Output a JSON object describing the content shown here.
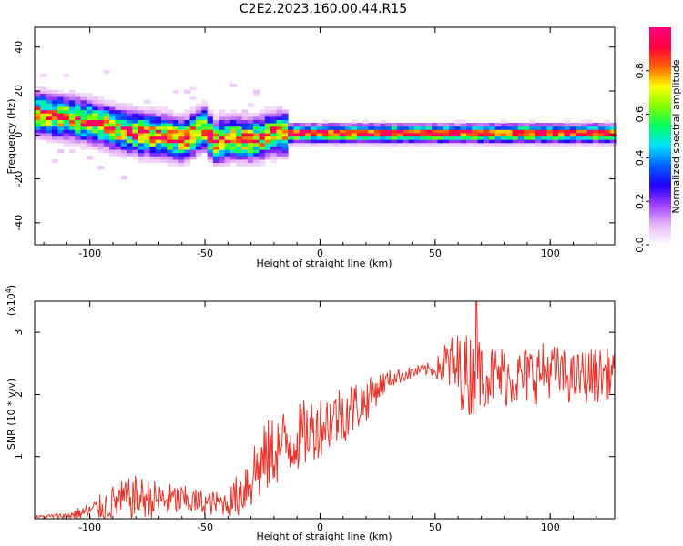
{
  "figure": {
    "title": "C2E2.2023.160.00.44.R15"
  },
  "chart_data": [
    {
      "type": "heatmap",
      "name": "spectrogram",
      "xlabel": "Height of straight line (km)",
      "ylabel": "Frequency (Hz)",
      "xlim": [
        -124,
        128
      ],
      "ylim": [
        -50,
        49
      ],
      "xticks": [
        -100,
        -50,
        0,
        50,
        100
      ],
      "yticks": [
        -40,
        -20,
        0,
        20,
        40
      ],
      "colorbar": {
        "label": "Normalized spectral amplitude",
        "range": [
          0.0,
          1.0
        ],
        "ticks": [
          0.0,
          0.2,
          0.4,
          0.6,
          0.8
        ],
        "tick_labels": [
          "0.0",
          "0.2",
          "0.4",
          "0.6",
          "0.8"
        ],
        "colormap": [
          "#ffffff",
          "#e8b8f8",
          "#a040ff",
          "#2000ff",
          "#0060ff",
          "#00e0ff",
          "#00ff60",
          "#80ff00",
          "#ffff00",
          "#ff6000",
          "#ff0040",
          "#ff0080"
        ]
      },
      "ridge": {
        "description_points_x": [
          -124,
          -110,
          -100,
          -90,
          -80,
          -70,
          -60,
          -52,
          -47,
          -40,
          -30,
          -22,
          -15,
          0,
          50,
          100,
          128
        ],
        "description_points_freq": [
          9,
          7,
          5,
          2,
          0,
          -1,
          -3,
          3,
          -4,
          -2,
          -3,
          0,
          0,
          0,
          0,
          0,
          0
        ]
      }
    },
    {
      "type": "line",
      "name": "snr",
      "xlabel": "Height of straight line (km)",
      "ylabel": "SNR (10 * v/v)",
      "scale_label": "(x10",
      "scale_exp": "4",
      "scale_close": ")",
      "xlim": [
        -124,
        128
      ],
      "ylim": [
        0,
        3.5
      ],
      "xticks": [
        -100,
        -50,
        0,
        50,
        100
      ],
      "yticks": [
        1,
        2,
        3
      ],
      "color": "#e8332a",
      "envelope_x": [
        -124,
        -110,
        -100,
        -90,
        -80,
        -70,
        -60,
        -50,
        -40,
        -35,
        -30,
        -25,
        -20,
        -15,
        -10,
        -5,
        0,
        5,
        10,
        15,
        20,
        25,
        30,
        35,
        40,
        45,
        50,
        55,
        60,
        65,
        70,
        75,
        80,
        85,
        90,
        95,
        100,
        105,
        110,
        115,
        120,
        128
      ],
      "envelope_mean": [
        0.03,
        0.05,
        0.12,
        0.25,
        0.35,
        0.3,
        0.3,
        0.25,
        0.25,
        0.4,
        0.7,
        0.9,
        1.1,
        1.2,
        1.3,
        1.4,
        1.5,
        1.6,
        1.7,
        1.8,
        1.9,
        2.1,
        2.25,
        2.3,
        2.35,
        2.4,
        2.4,
        2.5,
        2.4,
        2.3,
        2.35,
        2.3,
        2.3,
        2.25,
        2.3,
        2.35,
        2.4,
        2.3,
        2.25,
        2.3,
        2.3,
        2.35
      ],
      "envelope_spread": [
        0.02,
        0.05,
        0.15,
        0.3,
        0.35,
        0.3,
        0.25,
        0.2,
        0.2,
        0.4,
        0.6,
        0.6,
        0.6,
        0.6,
        0.55,
        0.55,
        0.5,
        0.5,
        0.5,
        0.45,
        0.35,
        0.25,
        0.15,
        0.12,
        0.1,
        0.1,
        0.12,
        0.45,
        0.6,
        0.7,
        0.55,
        0.5,
        0.5,
        0.45,
        0.5,
        0.5,
        0.45,
        0.45,
        0.4,
        0.45,
        0.45,
        0.4
      ],
      "peak": {
        "x": 68,
        "y": 3.52
      }
    }
  ]
}
